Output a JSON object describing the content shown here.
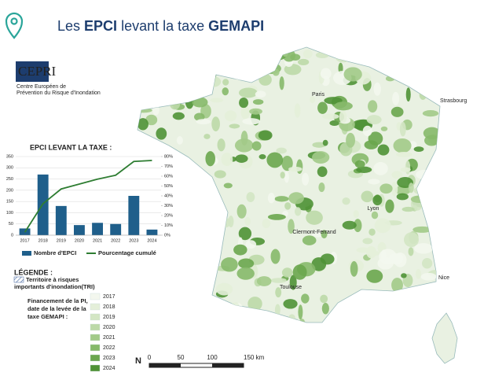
{
  "header": {
    "title_parts": [
      "Les ",
      "EPCI",
      " levant la taxe ",
      "GEMAPI"
    ]
  },
  "logo": {
    "name": "CEPRI",
    "subtitle_lines": [
      "Centre Européen de",
      "Prévention du Risque d'Inondation"
    ]
  },
  "chart_data": {
    "type": "bar",
    "title": "EPCI LEVANT LA TAXE :",
    "categories": [
      "2017",
      "2018",
      "2019",
      "2020",
      "2021",
      "2022",
      "2023",
      "2024"
    ],
    "series": [
      {
        "name": "Nombre d'EPCI",
        "color": "#1f5f8b",
        "type": "bar",
        "values": [
          30,
          270,
          130,
          45,
          55,
          50,
          175,
          25
        ]
      },
      {
        "name": "Pourcentage cumulé",
        "color": "#2e7d32",
        "type": "line",
        "axis": "y2",
        "values": [
          3,
          32,
          47,
          52,
          57,
          61,
          75,
          76
        ]
      }
    ],
    "ylim": [
      0,
      350
    ],
    "yticks": [
      0,
      50,
      100,
      150,
      200,
      250,
      300,
      350
    ],
    "y2lim": [
      0,
      80
    ],
    "y2ticks": [
      {
        "value": 0,
        "label": "0%"
      },
      {
        "value": 10,
        "label": "10%"
      },
      {
        "value": 20,
        "label": "20%"
      },
      {
        "value": 30,
        "label": "30%"
      },
      {
        "value": 40,
        "label": "40%"
      },
      {
        "value": 50,
        "label": "50%"
      },
      {
        "value": 60,
        "label": "60%"
      },
      {
        "value": 70,
        "label": "70%"
      },
      {
        "value": 80,
        "label": "80%"
      }
    ],
    "grid": true
  },
  "legend": {
    "title": "LÉGENDE :",
    "tri_label_lines": [
      "Territoire à risques",
      "importants d'inondation(TRI)"
    ],
    "financing_lines": [
      "Financement de la PI,",
      "date de la levée de la",
      "taxe GEMAPI :"
    ],
    "years": [
      {
        "label": "2017",
        "color": "#f3f7ee"
      },
      {
        "label": "2018",
        "color": "#e4efd9"
      },
      {
        "label": "2019",
        "color": "#d3e6c4"
      },
      {
        "label": "2020",
        "color": "#bcd9a8"
      },
      {
        "label": "2021",
        "color": "#a2ca88"
      },
      {
        "label": "2022",
        "color": "#86b96a"
      },
      {
        "label": "2023",
        "color": "#6aa64e"
      },
      {
        "label": "2024",
        "color": "#4f9236"
      }
    ]
  },
  "map": {
    "cities": [
      "Strasbourg",
      "Nice",
      "Paris",
      "Lyon",
      "Toulouse",
      "Clermont-Ferrand"
    ]
  },
  "scale": {
    "north": "N",
    "labels": [
      "0",
      "50",
      "100",
      "150 km"
    ]
  }
}
